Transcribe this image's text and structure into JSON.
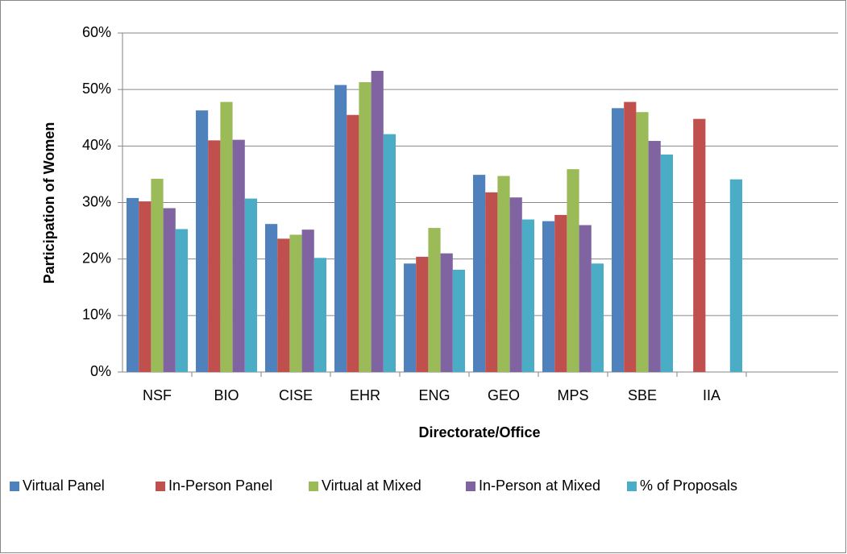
{
  "chart_data": {
    "type": "bar",
    "x_label": "Directorate/Office",
    "y_label": "Participation of Women",
    "categories": [
      "NSF",
      "BIO",
      "CISE",
      "EHR",
      "ENG",
      "GEO",
      "MPS",
      "SBE",
      "IIA"
    ],
    "series": [
      {
        "name": "Virtual Panel",
        "color": "#4f81bd",
        "values": [
          30.8,
          46.3,
          26.2,
          50.8,
          19.2,
          34.9,
          26.7,
          46.7,
          null
        ]
      },
      {
        "name": "In-Person Panel",
        "color": "#c0504d",
        "values": [
          30.2,
          41.0,
          23.6,
          45.5,
          20.4,
          31.8,
          27.8,
          47.8,
          44.8
        ]
      },
      {
        "name": "Virtual at Mixed",
        "color": "#9bbb59",
        "values": [
          34.2,
          47.8,
          24.3,
          51.3,
          25.5,
          34.7,
          35.9,
          46.0,
          null
        ]
      },
      {
        "name": "In-Person at Mixed",
        "color": "#8064a2",
        "values": [
          29.0,
          41.1,
          25.2,
          53.3,
          21.0,
          30.9,
          26.0,
          40.9,
          null
        ]
      },
      {
        "name": "% of Proposals",
        "color": "#4bacc6",
        "values": [
          25.3,
          30.7,
          20.2,
          42.1,
          18.1,
          27.0,
          19.2,
          38.5,
          34.1
        ]
      }
    ],
    "ylim": [
      0,
      60
    ],
    "yticks": [
      {
        "value": 0,
        "label": "0%"
      },
      {
        "value": 10,
        "label": "10%"
      },
      {
        "value": 20,
        "label": "20%"
      },
      {
        "value": 30,
        "label": "30%"
      },
      {
        "value": 40,
        "label": "40%"
      },
      {
        "value": 50,
        "label": "50%"
      },
      {
        "value": 60,
        "label": "60%"
      }
    ],
    "grid": true,
    "legend": "bottom"
  }
}
